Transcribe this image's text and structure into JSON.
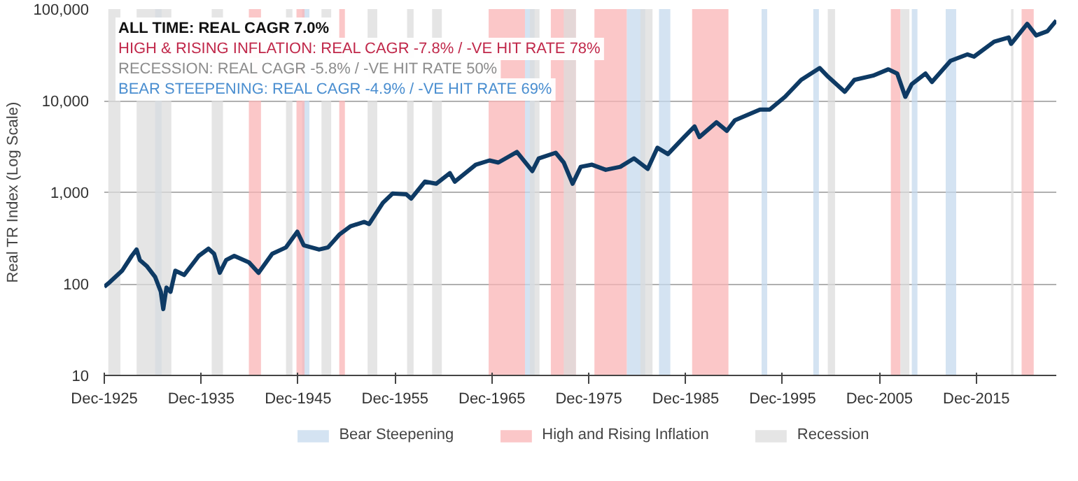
{
  "chart_data": {
    "type": "line",
    "ylabel": "Real TR Index (Log Scale)",
    "annotations": [
      "ALL TIME: REAL CAGR 7.0%",
      "HIGH & RISING INFLATION: REAL CAGR -7.8% / -VE HIT RATE 78%",
      "RECESSION: REAL CAGR -5.8% / -VE HIT RATE 50%",
      "BEAR STEEPENING: REAL CAGR -4.9% / -VE HIT RATE 69%"
    ],
    "x": [
      "1925-12",
      "1926-05",
      "1927-10",
      "1928-10",
      "1929-04",
      "1929-08",
      "1930-05",
      "1931-03",
      "1931-10",
      "1932-01",
      "1932-05",
      "1932-10",
      "1933-04",
      "1934-03",
      "1935-09",
      "1936-09",
      "1937-04",
      "1937-11",
      "1938-07",
      "1939-05",
      "1940-11",
      "1941-11",
      "1943-04",
      "1944-09",
      "1945-11",
      "1946-07",
      "1948-02",
      "1949-01",
      "1950-03",
      "1951-05",
      "1952-10",
      "1953-04",
      "1954-09",
      "1955-09",
      "1957-02",
      "1957-08",
      "1959-01",
      "1960-03",
      "1961-08",
      "1962-02",
      "1964-04",
      "1965-09",
      "1966-08",
      "1968-07",
      "1970-02",
      "1970-10",
      "1972-07",
      "1973-05",
      "1974-04",
      "1975-02",
      "1976-04",
      "1977-09",
      "1979-03",
      "1980-08",
      "1982-01",
      "1983-01",
      "1984-02",
      "1985-10",
      "1986-11",
      "1987-05",
      "1989-02",
      "1990-03",
      "1991-01",
      "1993-08",
      "1994-08",
      "1996-03",
      "1997-11",
      "1999-10",
      "2000-07",
      "2002-05",
      "2003-05",
      "2005-04",
      "2006-11",
      "2007-10",
      "2008-08",
      "2009-04",
      "2010-09",
      "2011-05",
      "2013-04",
      "2015-01",
      "2015-09",
      "2017-10",
      "2019-04",
      "2019-07",
      "2021-03",
      "2022-02",
      "2023-04",
      "2024-03"
    ],
    "series": [
      {
        "color": "#0e3a64",
        "values": [
          93,
          101,
          139,
          202,
          237,
          182,
          155,
          119,
          82,
          53,
          91,
          82,
          139,
          125,
          202,
          242,
          213,
          132,
          182,
          202,
          172,
          132,
          213,
          250,
          371,
          264,
          237,
          250,
          344,
          426,
          474,
          450,
          766,
          968,
          948,
          853,
          1306,
          1239,
          1616,
          1306,
          2000,
          2225,
          2110,
          2754,
          1702,
          2344,
          2700,
          2110,
          1239,
          1896,
          2000,
          1758,
          1896,
          2344,
          1800,
          3062,
          2612,
          4000,
          5220,
          4000,
          5808,
          4688,
          6120,
          8000,
          8000,
          11010,
          16870,
          22720,
          18770,
          12500,
          16870,
          18770,
          22000,
          19770,
          11010,
          15170,
          19770,
          16000,
          27230,
          32010,
          30280,
          44060,
          48980,
          41700,
          68870,
          51640,
          57400,
          75000
        ]
      }
    ],
    "xlim": [
      "1925-12",
      "2024-03"
    ],
    "xticks": [
      {
        "value": "1925-12",
        "label": "Dec-1925"
      },
      {
        "value": "1935-12",
        "label": "Dec-1935"
      },
      {
        "value": "1945-12",
        "label": "Dec-1945"
      },
      {
        "value": "1955-12",
        "label": "Dec-1955"
      },
      {
        "value": "1965-12",
        "label": "Dec-1965"
      },
      {
        "value": "1975-12",
        "label": "Dec-1975"
      },
      {
        "value": "1985-12",
        "label": "Dec-1985"
      },
      {
        "value": "1995-12",
        "label": "Dec-1995"
      },
      {
        "value": "2005-12",
        "label": "Dec-2005"
      },
      {
        "value": "2015-12",
        "label": "Dec-2015"
      }
    ],
    "ylim": [
      10,
      100000
    ],
    "yticks": [
      10,
      100,
      {
        "value": 1000,
        "label": "1,000"
      },
      {
        "value": 10000,
        "label": "10,000"
      },
      {
        "value": 100000,
        "label": "100,000"
      }
    ],
    "log": "y",
    "grid": "y",
    "legend": "bottom",
    "line_style": "solid",
    "bands": [
      {
        "axis": "x",
        "from": "1931-03",
        "to": "1931-11",
        "label": "Bear Steepening",
        "color": "#c6d9ee"
      },
      {
        "axis": "x",
        "from": "1946-05",
        "to": "1947-02",
        "color": "#c6d9ee"
      },
      {
        "axis": "x",
        "from": "1969-05",
        "to": "1970-05",
        "color": "#c6d9ee"
      },
      {
        "axis": "x",
        "from": "1979-11",
        "to": "1981-10",
        "color": "#c6d9ee"
      },
      {
        "axis": "x",
        "from": "1983-03",
        "to": "1984-05",
        "color": "#c6d9ee"
      },
      {
        "axis": "x",
        "from": "1993-10",
        "to": "1994-05",
        "color": "#c6d9ee"
      },
      {
        "axis": "x",
        "from": "1999-02",
        "to": "1999-09",
        "color": "#c6d9ee"
      },
      {
        "axis": "x",
        "from": "2009-04",
        "to": "2009-11",
        "color": "#c6d9ee"
      },
      {
        "axis": "x",
        "from": "2012-10",
        "to": "2013-11",
        "color": "#c6d9ee"
      },
      {
        "axis": "x",
        "from": "1940-11",
        "to": "1942-02",
        "label": "High and Rising Inflation",
        "color": "#f9b4b6"
      },
      {
        "axis": "x",
        "from": "1945-10",
        "to": "1946-08",
        "color": "#f9b4b6"
      },
      {
        "axis": "x",
        "from": "1950-03",
        "to": "1950-10",
        "color": "#f9b4b6"
      },
      {
        "axis": "x",
        "from": "1965-08",
        "to": "1969-05",
        "color": "#f9b4b6"
      },
      {
        "axis": "x",
        "from": "1972-01",
        "to": "1974-08",
        "color": "#f9b4b6"
      },
      {
        "axis": "x",
        "from": "1976-07",
        "to": "1979-11",
        "color": "#f9b4b6"
      },
      {
        "axis": "x",
        "from": "1986-08",
        "to": "1990-05",
        "color": "#f9b4b6"
      },
      {
        "axis": "x",
        "from": "2007-02",
        "to": "2008-02",
        "color": "#f9b4b6"
      },
      {
        "axis": "x",
        "from": "2020-08",
        "to": "2021-11",
        "color": "#f9b4b6"
      },
      {
        "axis": "x",
        "from": "1926-05",
        "to": "1927-08",
        "label": "Recession",
        "color": "#dcdcdc"
      },
      {
        "axis": "x",
        "from": "1929-04",
        "to": "1932-11",
        "color": "#dcdcdc"
      },
      {
        "axis": "x",
        "from": "1937-01",
        "to": "1938-03",
        "color": "#dcdcdc"
      },
      {
        "axis": "x",
        "from": "1944-09",
        "to": "1945-05",
        "color": "#dcdcdc"
      },
      {
        "axis": "x",
        "from": "1948-05",
        "to": "1949-05",
        "color": "#dcdcdc"
      },
      {
        "axis": "x",
        "from": "1953-02",
        "to": "1954-02",
        "color": "#dcdcdc"
      },
      {
        "axis": "x",
        "from": "1957-03",
        "to": "1957-11",
        "color": "#dcdcdc"
      },
      {
        "axis": "x",
        "from": "1959-10",
        "to": "1960-10",
        "color": "#dcdcdc"
      },
      {
        "axis": "x",
        "from": "1969-11",
        "to": "1970-11",
        "color": "#dcdcdc"
      },
      {
        "axis": "x",
        "from": "1973-05",
        "to": "1974-08",
        "color": "#dcdcdc"
      },
      {
        "axis": "x",
        "from": "1981-04",
        "to": "1982-07",
        "color": "#dcdcdc"
      },
      {
        "axis": "x",
        "from": "2000-08",
        "to": "2001-05",
        "color": "#dcdcdc"
      },
      {
        "axis": "x",
        "from": "2008-02",
        "to": "2009-01",
        "color": "#dcdcdc"
      },
      {
        "axis": "x",
        "from": "2019-07",
        "to": "2019-10",
        "color": "#dcdcdc"
      }
    ]
  }
}
